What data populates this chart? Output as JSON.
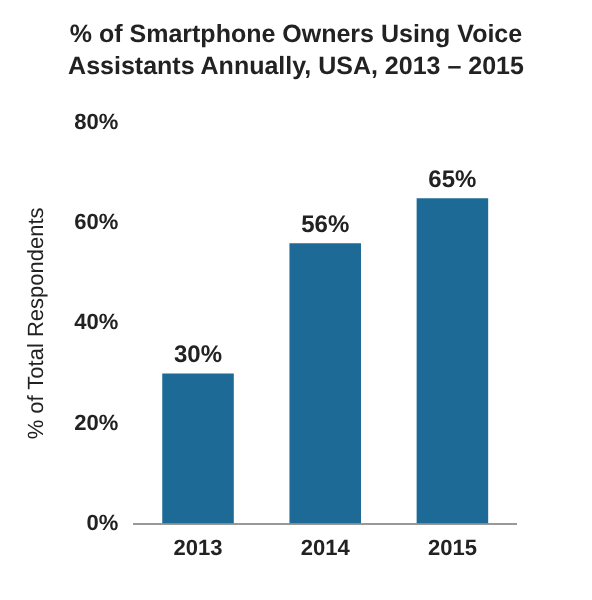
{
  "chart_data": {
    "type": "bar",
    "title": "% of Smartphone Owners Using Voice Assistants Annually, USA, 2013 – 2015",
    "ylabel": "% of Total Respondents",
    "categories": [
      "2013",
      "2014",
      "2015"
    ],
    "values": [
      30,
      56,
      65
    ],
    "color": "#1d6a96",
    "value_labels": [
      "30%",
      "56%",
      "65%"
    ],
    "ylim": [
      0,
      80
    ],
    "yticks": [
      {
        "value": 0,
        "label": "0%"
      },
      {
        "value": 20,
        "label": "20%"
      },
      {
        "value": 40,
        "label": "40%"
      },
      {
        "value": 60,
        "label": "60%"
      },
      {
        "value": 80,
        "label": "80%"
      }
    ],
    "grid": false
  }
}
